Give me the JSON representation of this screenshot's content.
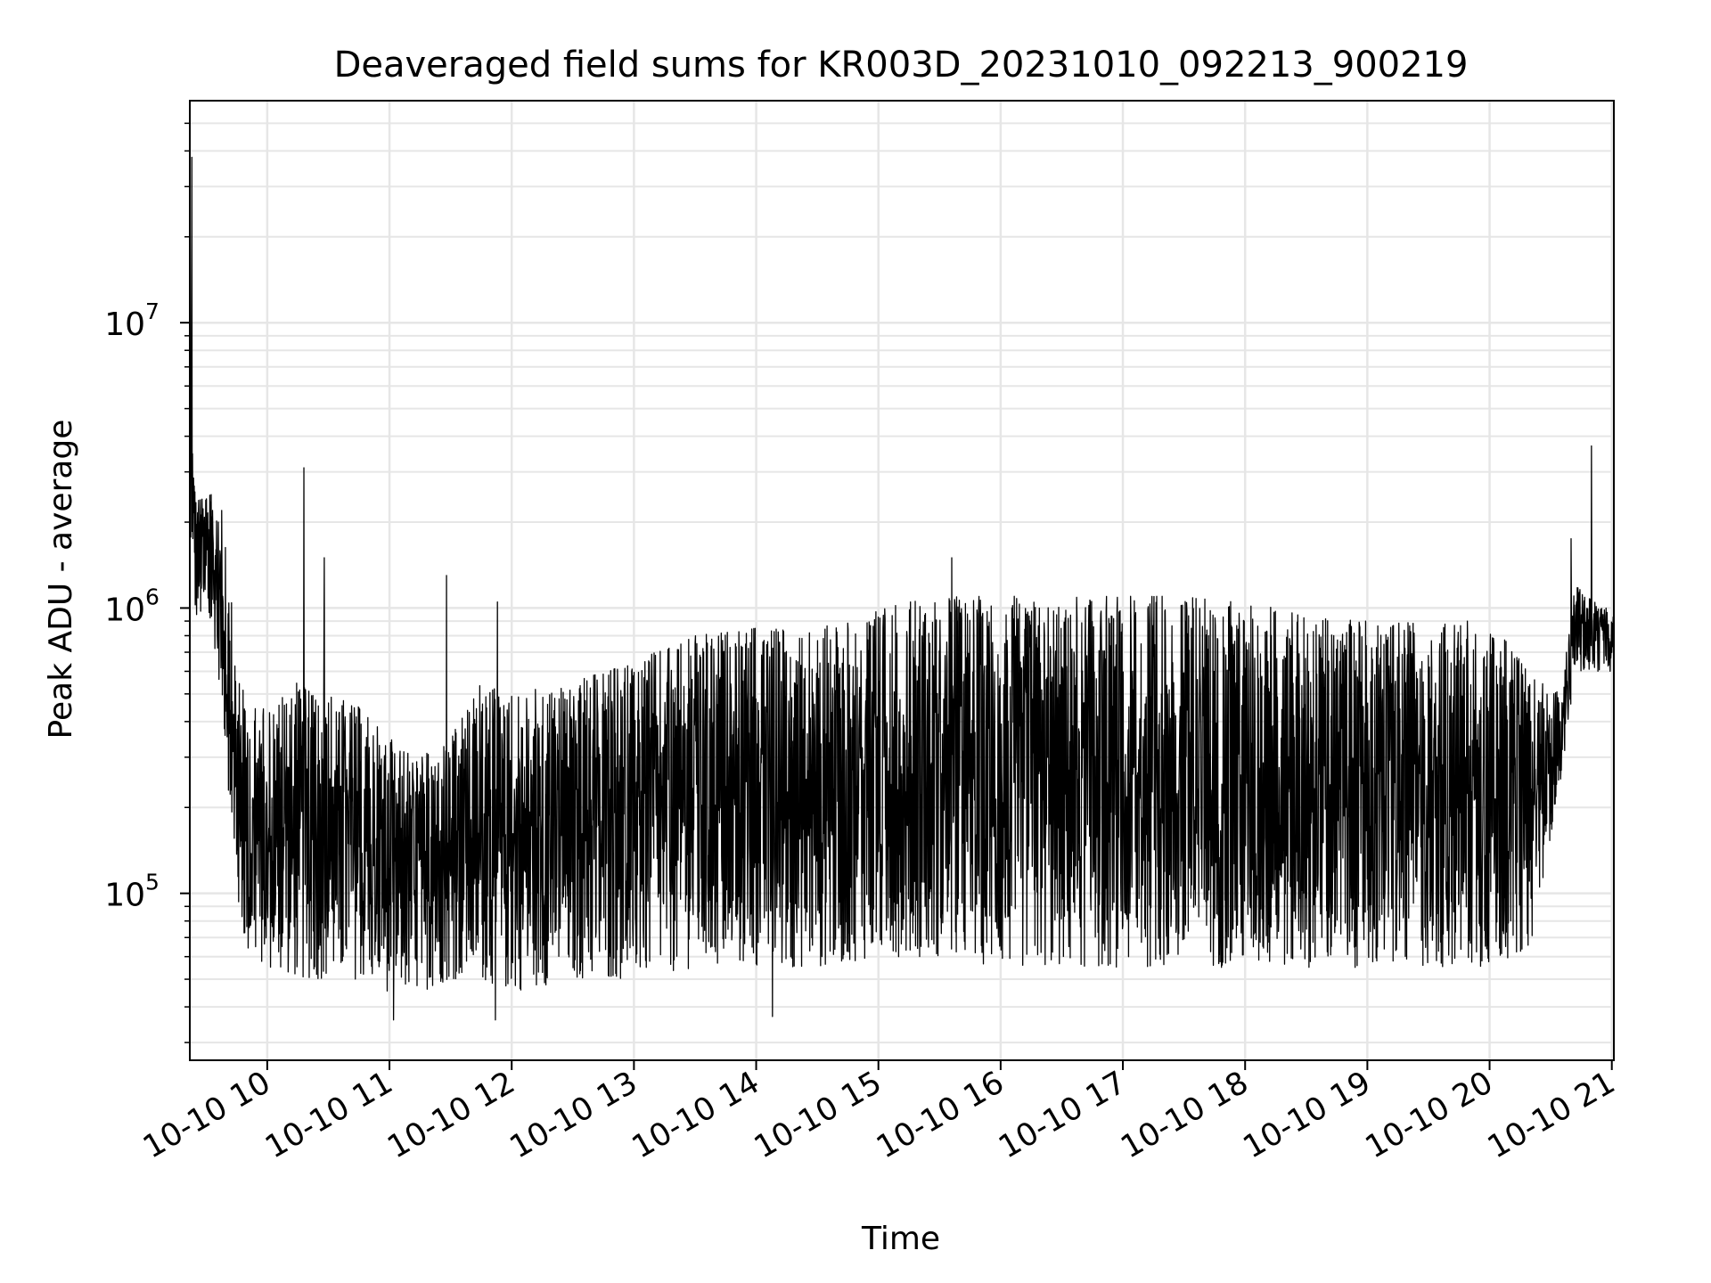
{
  "chart_data": {
    "type": "line",
    "title": "Deaveraged field sums for KR003D_20231010_092213_900219",
    "xlabel": "Time",
    "ylabel": "Peak ADU - average",
    "xlim": [
      "2023-10-10 09:22",
      "2023-10-10 21:01"
    ],
    "yscale": "log",
    "ylim": [
      26000,
      60000000
    ],
    "grid": true,
    "line_color": "#000000",
    "x_ticks": [
      {
        "value": "2023-10-10 10:00",
        "label": "10-10 10"
      },
      {
        "value": "2023-10-10 11:00",
        "label": "10-10 11"
      },
      {
        "value": "2023-10-10 12:00",
        "label": "10-10 12"
      },
      {
        "value": "2023-10-10 13:00",
        "label": "10-10 13"
      },
      {
        "value": "2023-10-10 14:00",
        "label": "10-10 14"
      },
      {
        "value": "2023-10-10 15:00",
        "label": "10-10 15"
      },
      {
        "value": "2023-10-10 16:00",
        "label": "10-10 16"
      },
      {
        "value": "2023-10-10 17:00",
        "label": "10-10 17"
      },
      {
        "value": "2023-10-10 18:00",
        "label": "10-10 18"
      },
      {
        "value": "2023-10-10 19:00",
        "label": "10-10 19"
      },
      {
        "value": "2023-10-10 20:00",
        "label": "10-10 20"
      },
      {
        "value": "2023-10-10 21:00",
        "label": "10-10 21"
      }
    ],
    "y_ticks": [
      {
        "value": 100000,
        "label": "10",
        "exp": "5"
      },
      {
        "value": 1000000,
        "label": "10",
        "exp": "6"
      },
      {
        "value": 10000000,
        "label": "10",
        "exp": "7"
      }
    ],
    "series": [
      {
        "envelope": {
          "x": [
            "2023-10-10 09:22",
            "2023-10-10 09:24",
            "2023-10-10 09:28",
            "2023-10-10 09:35",
            "2023-10-10 09:40",
            "2023-10-10 09:44",
            "2023-10-10 09:50",
            "2023-10-10 10:00",
            "2023-10-10 10:15",
            "2023-10-10 10:30",
            "2023-10-10 10:45",
            "2023-10-10 11:00",
            "2023-10-10 11:15",
            "2023-10-10 11:30",
            "2023-10-10 11:45",
            "2023-10-10 12:00",
            "2023-10-10 12:30",
            "2023-10-10 13:00",
            "2023-10-10 13:30",
            "2023-10-10 14:00",
            "2023-10-10 14:30",
            "2023-10-10 15:00",
            "2023-10-10 15:30",
            "2023-10-10 16:00",
            "2023-10-10 16:30",
            "2023-10-10 17:00",
            "2023-10-10 17:30",
            "2023-10-10 18:00",
            "2023-10-10 18:30",
            "2023-10-10 19:00",
            "2023-10-10 19:30",
            "2023-10-10 20:00",
            "2023-10-10 20:20",
            "2023-10-10 20:35",
            "2023-10-10 20:42",
            "2023-10-10 20:50",
            "2023-10-10 21:01"
          ],
          "low": [
            1500000,
            900000,
            900000,
            700000,
            300000,
            100000,
            60000,
            55000,
            50000,
            50000,
            50000,
            45000,
            45000,
            50000,
            50000,
            45000,
            50000,
            50000,
            55000,
            55000,
            55000,
            60000,
            60000,
            55000,
            55000,
            55000,
            55000,
            55000,
            55000,
            55000,
            55000,
            55000,
            65000,
            250000,
            600000,
            600000,
            600000
          ],
          "high": [
            42000000,
            3000000,
            2500000,
            2500000,
            2000000,
            700000,
            450000,
            450000,
            550000,
            500000,
            450000,
            350000,
            300000,
            350000,
            550000,
            500000,
            550000,
            650000,
            800000,
            850000,
            850000,
            1000000,
            1100000,
            1100000,
            1100000,
            1100000,
            1100000,
            1050000,
            950000,
            900000,
            900000,
            900000,
            600000,
            500000,
            1200000,
            1100000,
            950000
          ]
        },
        "spikes": [
          {
            "x": "2023-10-10 09:22",
            "y": 42000000
          },
          {
            "x": "2023-10-10 09:23",
            "y": 38000000
          },
          {
            "x": "2023-10-10 10:18",
            "y": 3100000
          },
          {
            "x": "2023-10-10 10:28",
            "y": 1500000
          },
          {
            "x": "2023-10-10 11:28",
            "y": 1300000
          },
          {
            "x": "2023-10-10 11:53",
            "y": 1050000
          },
          {
            "x": "2023-10-10 15:36",
            "y": 1500000
          },
          {
            "x": "2023-10-10 20:50",
            "y": 3700000
          },
          {
            "x": "2023-10-10 20:40",
            "y": 1750000
          },
          {
            "x": "2023-10-10 14:08",
            "y": 37000
          },
          {
            "x": "2023-10-10 11:02",
            "y": 36000
          },
          {
            "x": "2023-10-10 11:52",
            "y": 36000
          }
        ]
      }
    ]
  }
}
